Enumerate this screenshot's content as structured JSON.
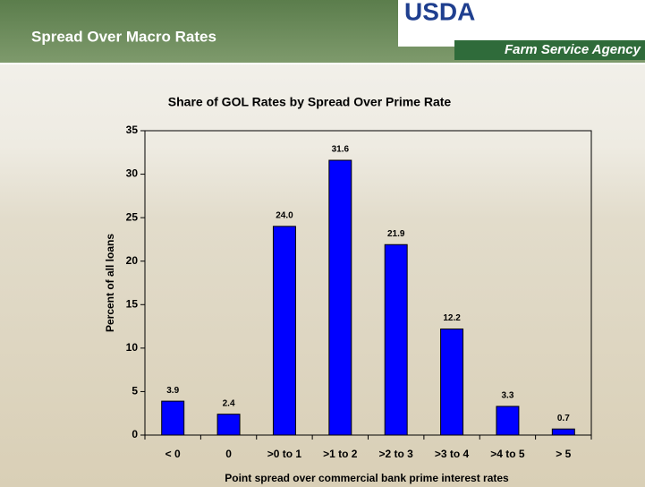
{
  "slide": {
    "title": "Spread Over Macro Rates",
    "logo": "USDA",
    "agency": "Farm Service Agency"
  },
  "chart_data": {
    "type": "bar",
    "title": "Share of GOL Rates by Spread Over Prime Rate",
    "x_label": "Point spread over commercial bank prime interest rates",
    "y_label": "Percent of all loans",
    "categories": [
      "< 0",
      "0",
      ">0 to 1",
      ">1 to 2",
      ">2 to 3",
      ">3 to 4",
      ">4 to 5",
      "> 5"
    ],
    "values": [
      3.9,
      2.4,
      24.0,
      31.6,
      21.9,
      12.2,
      3.3,
      0.7
    ],
    "value_labels": [
      "3.9",
      "2.4",
      "24.0",
      "31.6",
      "21.9",
      "12.2",
      "3.3",
      "0.7"
    ],
    "color": "#0000ff",
    "ylim": [
      0,
      35
    ],
    "yticks": [
      0,
      5,
      10,
      15,
      20,
      25,
      30,
      35
    ],
    "grid": false
  }
}
